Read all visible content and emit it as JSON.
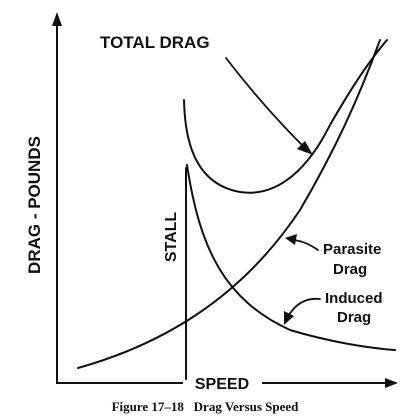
{
  "diagram": {
    "title": "TOTAL DRAG",
    "y_axis_label": "DRAG - POUNDS",
    "x_axis_label": "SPEED",
    "stall_label": "STALL",
    "curves": {
      "total": "TOTAL DRAG",
      "parasite": [
        "Parasite",
        "Drag"
      ],
      "induced": [
        "Induced",
        "Drag"
      ]
    }
  },
  "caption": "Figure 17–18   Drag Versus Speed",
  "colors": {
    "ink": "#111111",
    "background": "#ffffff"
  }
}
